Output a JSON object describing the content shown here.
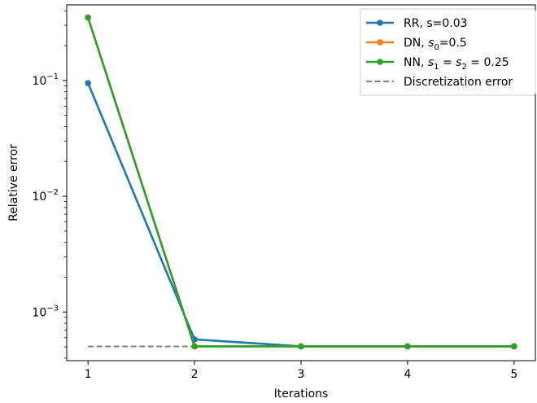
{
  "chart_data": {
    "type": "line",
    "xlabel": "Iterations",
    "ylabel": "Relative error",
    "yscale": "log",
    "xlim": [
      0.8,
      5.2
    ],
    "ylim": [
      0.00038,
      0.45
    ],
    "grid": false,
    "legend_position": "top-right",
    "xticks": [
      {
        "value": 1,
        "label": "1"
      },
      {
        "value": 2,
        "label": "2"
      },
      {
        "value": 3,
        "label": "3"
      },
      {
        "value": 4,
        "label": "4"
      },
      {
        "value": 5,
        "label": "5"
      }
    ],
    "yticks": [
      {
        "value": 0.1,
        "base": "10",
        "exp": "−1"
      },
      {
        "value": 0.01,
        "base": "10",
        "exp": "−2"
      },
      {
        "value": 0.001,
        "base": "10",
        "exp": "−3"
      }
    ],
    "x": [
      1,
      2,
      3,
      4,
      5
    ],
    "series": [
      {
        "key": "rr",
        "legend": {
          "text": "RR, s=0.03"
        },
        "color": "#1f77b4",
        "style": "solid",
        "marker": true,
        "values": [
          0.095,
          0.00058,
          0.000505,
          0.000505,
          0.000505
        ]
      },
      {
        "key": "dn",
        "legend": {
          "text": "DN, ",
          "math": "s",
          "sub": "0",
          "tail": "=0.5"
        },
        "color": "#ff7f0e",
        "style": "solid",
        "marker": true,
        "values": [
          0.35,
          0.000505,
          0.000505,
          0.000505,
          0.000505
        ]
      },
      {
        "key": "nn",
        "legend": {
          "text": "NN, ",
          "math": "s",
          "sub": "1",
          "mid": " = ",
          "math2": "s",
          "sub2": "2",
          "tail": " = 0.25"
        },
        "color": "#2ca02c",
        "style": "solid",
        "marker": true,
        "values": [
          0.35,
          0.000505,
          0.000505,
          0.000505,
          0.000505
        ]
      },
      {
        "key": "disc",
        "legend": {
          "text": "Discretization error"
        },
        "color": "#808080",
        "style": "dashed",
        "marker": false,
        "values": [
          0.000505,
          0.000505,
          0.000505,
          0.000505,
          0.000505
        ]
      }
    ]
  }
}
